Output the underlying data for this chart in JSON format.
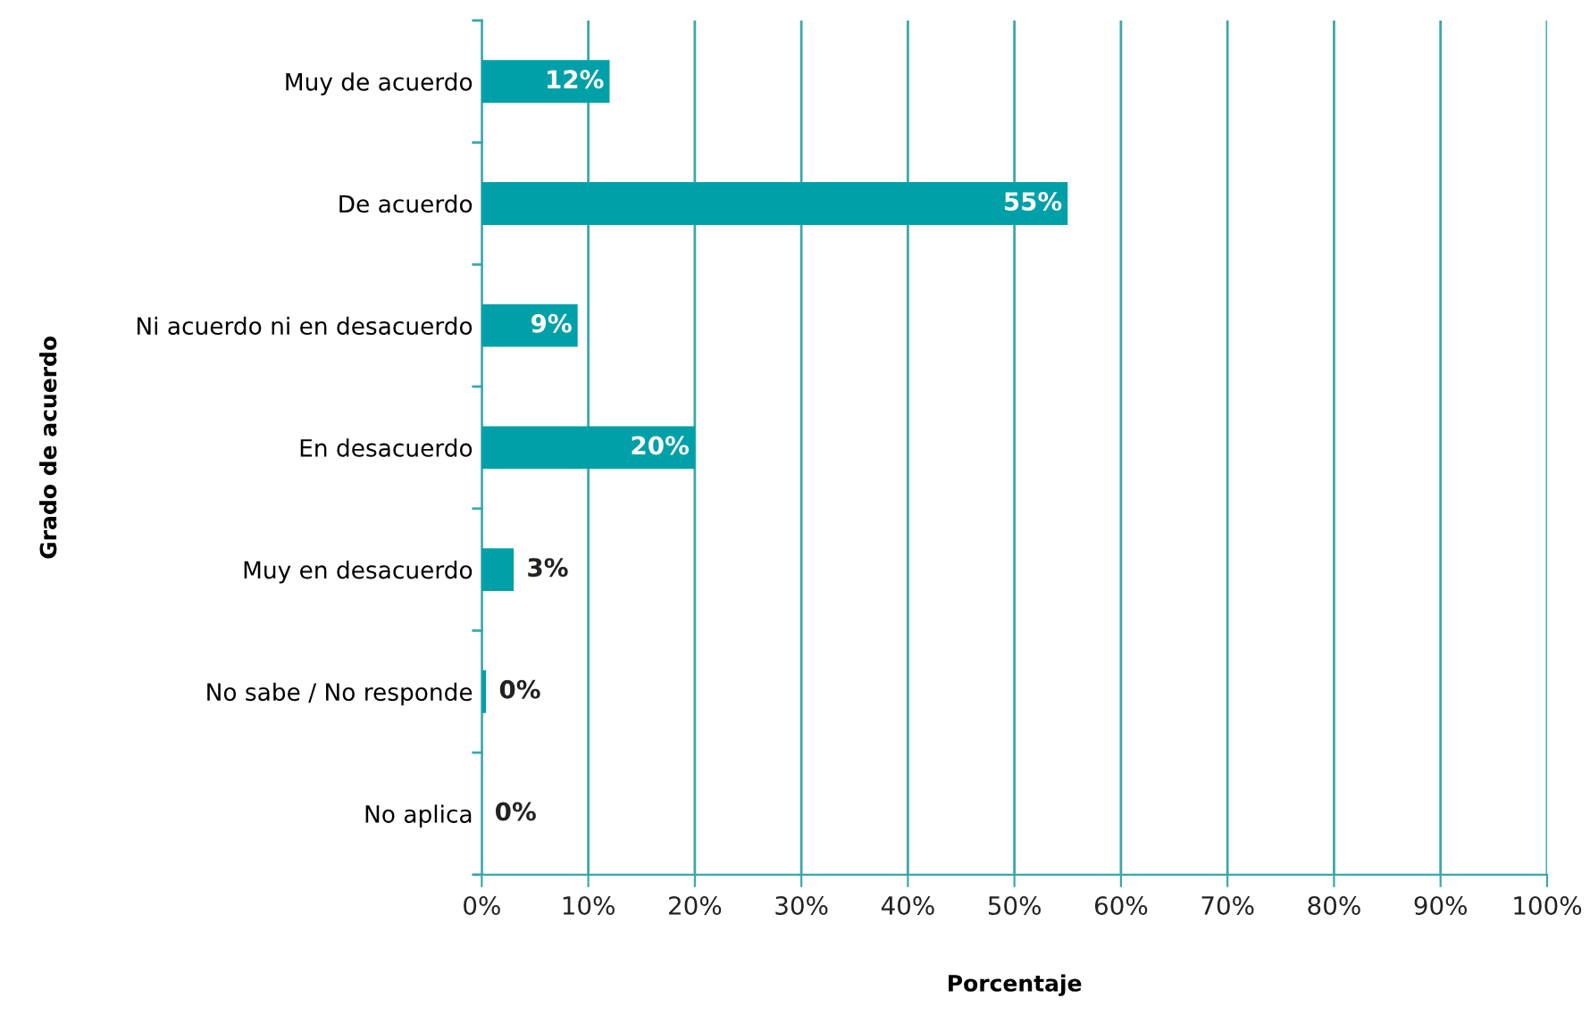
{
  "chart_data": {
    "type": "bar",
    "orientation": "horizontal",
    "xlabel": "Porcentaje",
    "ylabel": "Grado de acuerdo",
    "categories": [
      "Muy de acuerdo",
      "De acuerdo",
      "Ni acuerdo ni en desacuerdo",
      "En desacuerdo",
      "Muy en desacuerdo",
      "No sabe / No responde",
      "No aplica"
    ],
    "values": [
      12,
      55,
      9,
      20,
      3,
      0.4,
      0
    ],
    "value_labels": [
      "12%",
      "55%",
      "9%",
      "20%",
      "3%",
      "0%",
      "0%"
    ],
    "color": "#00a0a8",
    "xlim": [
      0,
      100
    ],
    "xticks": [
      {
        "value": 0,
        "label": "0%"
      },
      {
        "value": 10,
        "label": "10%"
      },
      {
        "value": 20,
        "label": "20%"
      },
      {
        "value": 30,
        "label": "30%"
      },
      {
        "value": 40,
        "label": "40%"
      },
      {
        "value": 50,
        "label": "50%"
      },
      {
        "value": 60,
        "label": "60%"
      },
      {
        "value": 70,
        "label": "70%"
      },
      {
        "value": 80,
        "label": "80%"
      },
      {
        "value": 90,
        "label": "90%"
      },
      {
        "value": 100,
        "label": "100%"
      }
    ],
    "grid": "x",
    "legend": false
  }
}
